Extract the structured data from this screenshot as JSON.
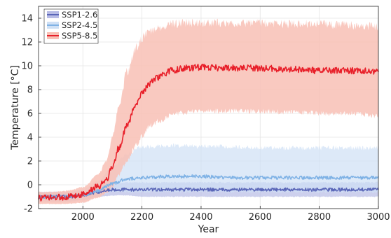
{
  "chart_data": {
    "type": "line",
    "xlabel": "Year",
    "ylabel": "Temperature [°C]",
    "xlim": [
      1850,
      3000
    ],
    "ylim": [
      -2,
      15
    ],
    "xticks": [
      2000,
      2200,
      2400,
      2600,
      2800,
      3000
    ],
    "yticks": [
      -2,
      0,
      2,
      4,
      6,
      8,
      10,
      12,
      14
    ],
    "grid": true,
    "legend_position": "top-left",
    "series": [
      {
        "name": "SSP1-2.6",
        "line_color": "#5a66b8",
        "band_color": "#b8bce6",
        "x": [
          1850,
          1900,
          1950,
          2000,
          2050,
          2100,
          2150,
          2200,
          2300,
          2400,
          2500,
          2600,
          2700,
          2800,
          2900,
          3000
        ],
        "values": [
          -1.0,
          -1.0,
          -1.0,
          -0.9,
          -0.6,
          -0.4,
          -0.4,
          -0.4,
          -0.4,
          -0.4,
          -0.4,
          -0.4,
          -0.4,
          -0.4,
          -0.4,
          -0.4
        ],
        "lower": [
          -1.4,
          -1.4,
          -1.4,
          -1.3,
          -1.0,
          -0.9,
          -0.9,
          -1.0,
          -1.0,
          -1.0,
          -1.0,
          -1.0,
          -1.0,
          -1.0,
          -1.0,
          -1.0
        ],
        "upper": [
          -0.6,
          -0.6,
          -0.6,
          -0.5,
          -0.2,
          0.1,
          0.2,
          0.2,
          0.2,
          0.2,
          0.2,
          0.2,
          0.2,
          0.2,
          0.2,
          0.2
        ]
      },
      {
        "name": "SSP2-4.5",
        "line_color": "#7fb2e5",
        "band_color": "#cfe0f5",
        "x": [
          1850,
          1900,
          1950,
          2000,
          2050,
          2100,
          2150,
          2200,
          2300,
          2400,
          2500,
          2600,
          2700,
          2800,
          2900,
          3000
        ],
        "values": [
          -1.0,
          -1.0,
          -1.0,
          -0.9,
          -0.5,
          0.1,
          0.5,
          0.6,
          0.7,
          0.7,
          0.6,
          0.6,
          0.6,
          0.6,
          0.6,
          0.6
        ],
        "lower": [
          -1.4,
          -1.4,
          -1.4,
          -1.3,
          -1.0,
          -0.6,
          -0.6,
          -0.6,
          -0.6,
          -0.6,
          -0.6,
          -0.6,
          -0.6,
          -0.6,
          -0.6,
          -0.6
        ],
        "upper": [
          -0.6,
          -0.6,
          -0.6,
          -0.4,
          0.3,
          1.5,
          2.6,
          3.2,
          3.3,
          3.2,
          3.2,
          3.1,
          3.1,
          3.1,
          3.1,
          3.1
        ]
      },
      {
        "name": "SSP5-8.5",
        "line_color": "#e8202a",
        "band_color": "#f8c0b5",
        "x": [
          1850,
          1900,
          1950,
          2000,
          2050,
          2080,
          2100,
          2120,
          2150,
          2180,
          2200,
          2230,
          2260,
          2300,
          2350,
          2400,
          2500,
          2600,
          2700,
          2800,
          2900,
          3000
        ],
        "values": [
          -1.1,
          -1.1,
          -1.0,
          -0.8,
          -0.2,
          0.5,
          1.5,
          3.0,
          5.0,
          6.8,
          7.8,
          8.6,
          9.1,
          9.6,
          9.8,
          9.9,
          9.8,
          9.8,
          9.7,
          9.6,
          9.6,
          9.5
        ],
        "lower": [
          -1.6,
          -1.6,
          -1.6,
          -1.5,
          -1.1,
          -0.7,
          -0.2,
          0.8,
          2.0,
          3.3,
          4.1,
          5.0,
          5.4,
          5.9,
          6.1,
          6.2,
          6.2,
          6.2,
          6.1,
          6.0,
          6.0,
          5.8
        ],
        "upper": [
          -0.6,
          -0.6,
          -0.5,
          -0.2,
          0.8,
          2.0,
          4.0,
          6.5,
          9.5,
          11.5,
          12.4,
          13.0,
          13.3,
          13.5,
          13.6,
          13.6,
          13.6,
          13.6,
          13.5,
          13.5,
          13.4,
          13.3
        ]
      }
    ]
  }
}
